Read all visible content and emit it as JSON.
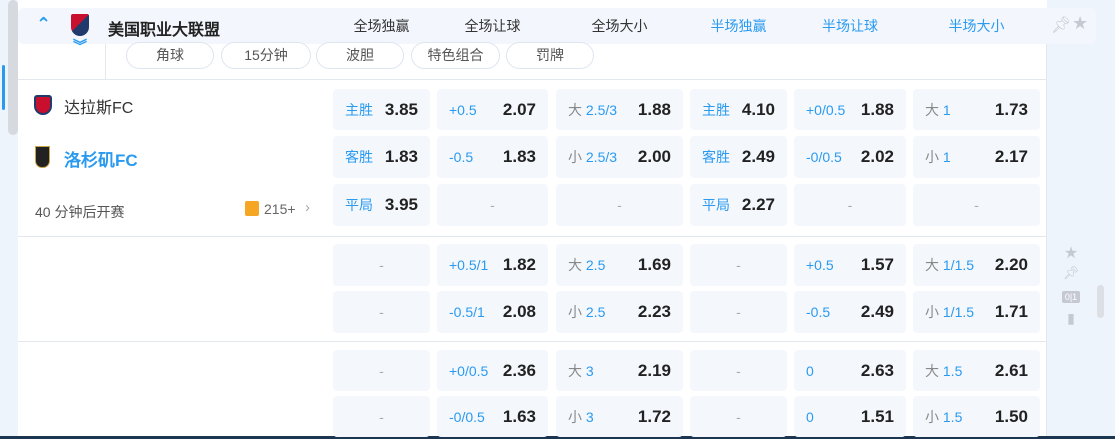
{
  "league": {
    "name": "美国职业大联盟",
    "columns": [
      "全场独赢",
      "全场让球",
      "全场大小",
      "半场独赢",
      "半场让球",
      "半场大小"
    ],
    "tabs": [
      "角球",
      "15分钟",
      "波胆",
      "特色组合",
      "罚牌"
    ]
  },
  "match": {
    "home": "达拉斯FC",
    "away": "洛杉矶FC",
    "status": "40 分钟后开赛",
    "more": "215+"
  },
  "rows": [
    [
      [
        [
          "",
          "主胜"
        ],
        "3.85"
      ],
      [
        [
          "",
          "+0.5"
        ],
        "2.07"
      ],
      [
        [
          "大 ",
          "2.5/3"
        ],
        "1.88"
      ],
      [
        [
          "",
          "主胜"
        ],
        "4.10"
      ],
      [
        [
          "",
          "+0/0.5"
        ],
        "1.88"
      ],
      [
        [
          "大 ",
          "1"
        ],
        "1.73"
      ]
    ],
    [
      [
        [
          "",
          "客胜"
        ],
        "1.83"
      ],
      [
        [
          "",
          "-0.5"
        ],
        "1.83"
      ],
      [
        [
          "小 ",
          "2.5/3"
        ],
        "2.00"
      ],
      [
        [
          "",
          "客胜"
        ],
        "2.49"
      ],
      [
        [
          "",
          "-0/0.5"
        ],
        "2.02"
      ],
      [
        [
          "小 ",
          "1"
        ],
        "2.17"
      ]
    ],
    [
      [
        [
          "",
          "平局"
        ],
        "3.95"
      ],
      "-",
      "-",
      [
        [
          "",
          "平局"
        ],
        "2.27"
      ],
      "-",
      "-"
    ],
    [
      "-",
      [
        [
          "",
          "+0.5/1"
        ],
        "1.82"
      ],
      [
        [
          "大 ",
          "2.5"
        ],
        "1.69"
      ],
      "-",
      [
        [
          "",
          "+0.5"
        ],
        "1.57"
      ],
      [
        [
          "大 ",
          "1/1.5"
        ],
        "2.20"
      ]
    ],
    [
      "-",
      [
        [
          "",
          "-0.5/1"
        ],
        "2.08"
      ],
      [
        [
          "小 ",
          "2.5"
        ],
        "2.23"
      ],
      "-",
      [
        [
          "",
          "-0.5"
        ],
        "2.49"
      ],
      [
        [
          "小 ",
          "1/1.5"
        ],
        "1.71"
      ]
    ],
    [
      "-",
      [
        [
          "",
          "+0/0.5"
        ],
        "2.36"
      ],
      [
        [
          "大 ",
          "3"
        ],
        "2.19"
      ],
      "-",
      [
        [
          "",
          "0"
        ],
        "2.63"
      ],
      [
        [
          "大 ",
          "1.5"
        ],
        "2.61"
      ]
    ],
    [
      "-",
      [
        [
          "",
          "-0/0.5"
        ],
        "1.63"
      ],
      [
        [
          "小 ",
          "3"
        ],
        "1.72"
      ],
      "-",
      [
        [
          "",
          "0"
        ],
        "1.51"
      ],
      [
        [
          "小 ",
          "1.5"
        ],
        "1.50"
      ]
    ]
  ],
  "colors": {
    "accent": "#2a9af0",
    "cell_bg": "#f4f8fd"
  }
}
